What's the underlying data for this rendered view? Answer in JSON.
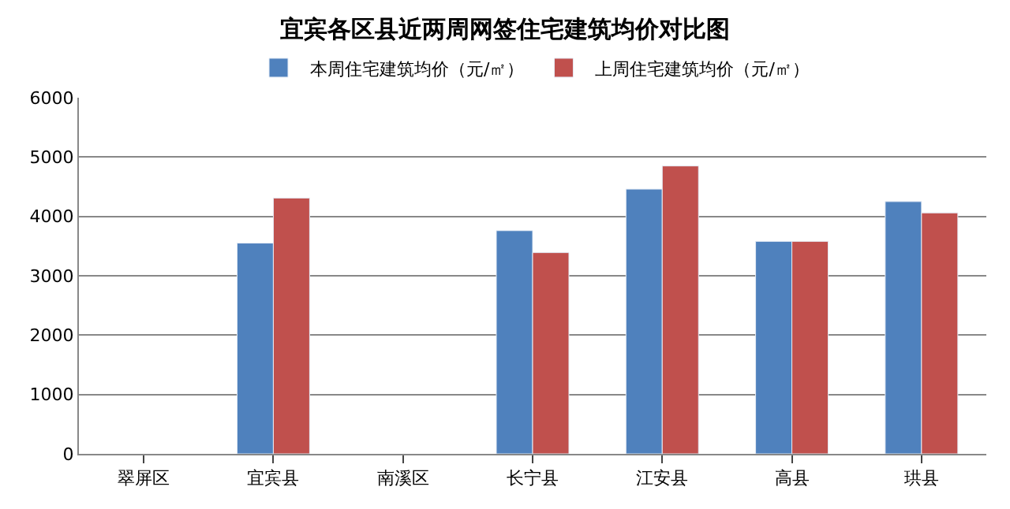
{
  "chart_data": {
    "type": "bar",
    "title": "宜宾各区县近两周网签住宅建筑均价对比图",
    "categories": [
      "翠屏区",
      "宜宾县",
      "南溪区",
      "长宁县",
      "江安县",
      "高县",
      "珙县"
    ],
    "series": [
      {
        "name": "本周住宅建筑均价（元/㎡）",
        "color": "#4f81bd",
        "values": [
          null,
          3550,
          null,
          3760,
          4460,
          3580,
          4250
        ]
      },
      {
        "name": "上周住宅建筑均价（元/㎡）",
        "color": "#c0504d",
        "values": [
          null,
          4310,
          null,
          3390,
          4850,
          3580,
          4060
        ]
      }
    ],
    "ylim": [
      0,
      6000
    ],
    "yticks": [
      0,
      1000,
      2000,
      3000,
      4000,
      5000,
      6000
    ],
    "grid": "y",
    "legend": "top"
  }
}
